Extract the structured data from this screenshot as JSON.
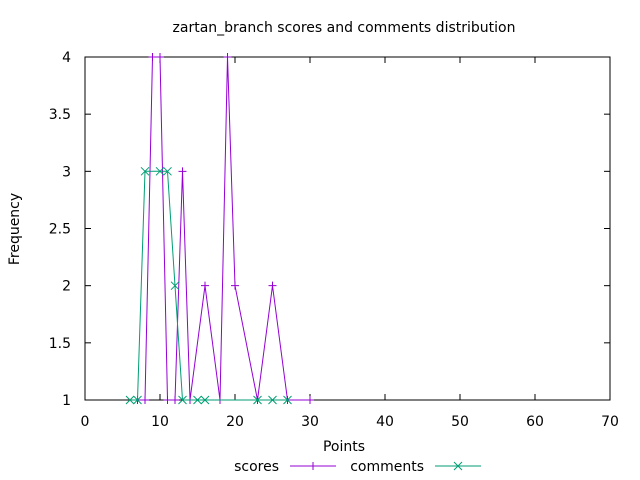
{
  "chart_data": {
    "type": "line",
    "title": "zartan_branch scores and comments distribution",
    "xlabel": "Points",
    "ylabel": "Frequency",
    "xlim": [
      0,
      70
    ],
    "ylim": [
      1,
      4
    ],
    "xticks": [
      0,
      10,
      20,
      30,
      40,
      50,
      60,
      70
    ],
    "yticks": [
      1,
      1.5,
      2,
      2.5,
      3,
      3.5,
      4
    ],
    "legend_position": "bottom-center",
    "series": [
      {
        "name": "scores",
        "color": "#9400d3",
        "marker": "plus",
        "x": [
          7,
          8,
          9,
          10,
          11,
          12,
          13,
          14,
          16,
          18,
          19,
          20,
          23,
          25,
          27,
          30
        ],
        "y": [
          1,
          1,
          4,
          4,
          1,
          1,
          3,
          1,
          2,
          1,
          4,
          2,
          1,
          2,
          1,
          1
        ]
      },
      {
        "name": "comments",
        "color": "#009e73",
        "marker": "cross",
        "x": [
          6,
          7,
          8,
          10,
          11,
          12,
          13,
          15,
          16,
          23,
          25,
          27
        ],
        "y": [
          1,
          1,
          3,
          3,
          3,
          2,
          1,
          1,
          1,
          1,
          1,
          1
        ]
      }
    ]
  }
}
